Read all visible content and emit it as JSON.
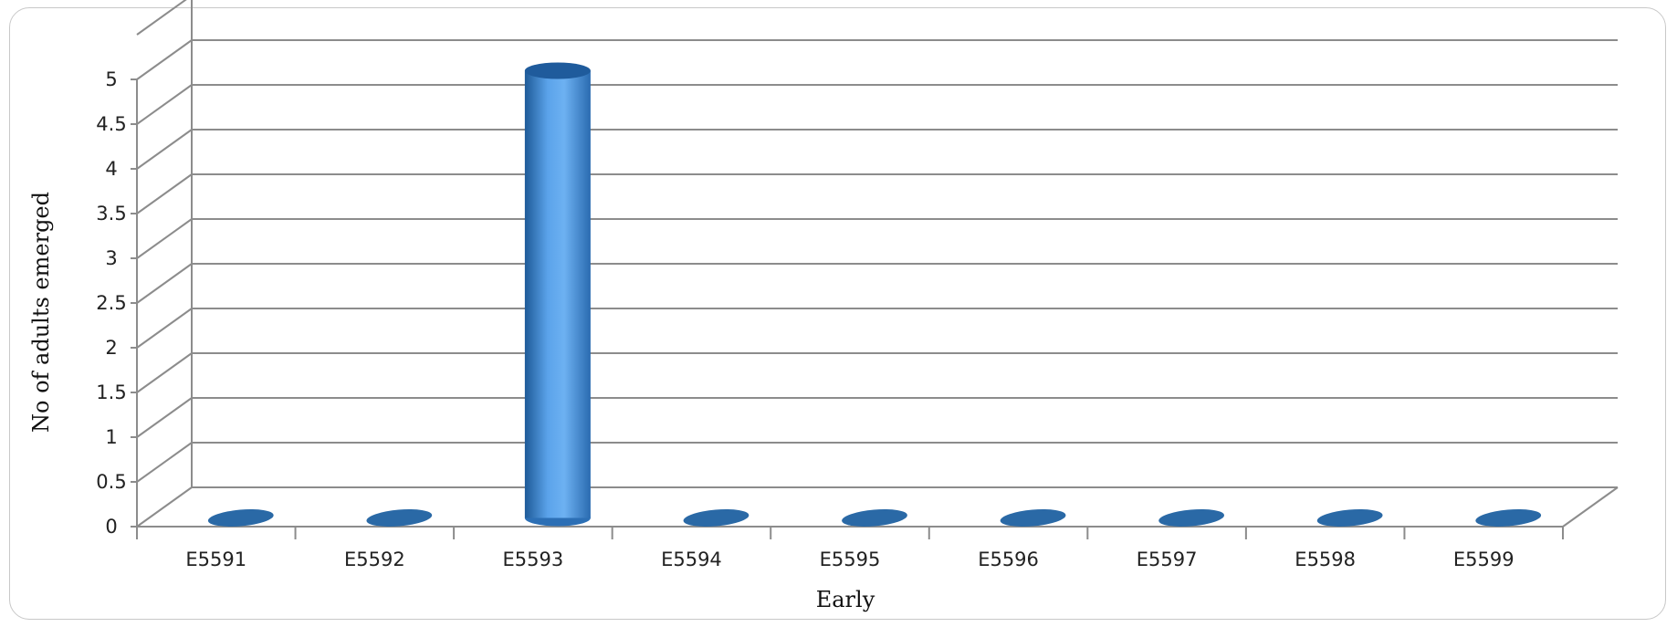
{
  "chart_data": {
    "type": "bar",
    "style": "3d-cylinder",
    "categories": [
      "E5591",
      "E5592",
      "E5593",
      "E5594",
      "E5595",
      "E5596",
      "E5597",
      "E5598",
      "E5599"
    ],
    "values": [
      0,
      0,
      5,
      0,
      0,
      0,
      0,
      0,
      0
    ],
    "xlabel": "Early",
    "ylabel": "No of adults emerged",
    "ylim": [
      0,
      5
    ],
    "yticks": [
      "0",
      "0.5",
      "1",
      "1.5",
      "2",
      "2.5",
      "3",
      "3.5",
      "4",
      "4.5",
      "5"
    ],
    "grid": true,
    "legend": "none",
    "colors": {
      "bar": "#4a8fd6",
      "bar_top": "#1f5b9c",
      "grid": "#8c8c8c"
    }
  }
}
